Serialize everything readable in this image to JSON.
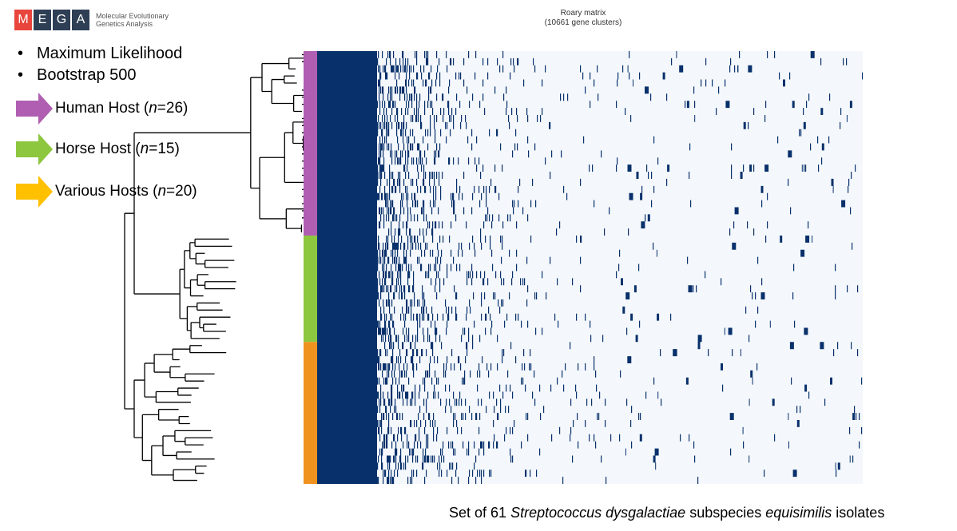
{
  "logo": {
    "letters": [
      "M",
      "E",
      "G",
      "A"
    ],
    "colors": [
      "#e8453c",
      "#2e3f55",
      "#2e3f55",
      "#2e3f55"
    ],
    "subtitle_line1": "Molecular Evolutionary",
    "subtitle_line2": "Genetics Analysis"
  },
  "bullets": [
    {
      "symbol": "•",
      "text": "Maximum Likelihood"
    },
    {
      "symbol": "•",
      "text": "Bootstrap 500"
    }
  ],
  "legend": [
    {
      "label_prefix": "Human Host (",
      "n_label": "n",
      "label_suffix": "=26)",
      "color": "#b05eb2",
      "count": 26
    },
    {
      "label_prefix": "Horse Host (",
      "n_label": "n",
      "label_suffix": "=15)",
      "color": "#8dc63f",
      "count": 15
    },
    {
      "label_prefix": "Various Hosts (",
      "n_label": "n",
      "label_suffix": "=20)",
      "color": "#ffc000",
      "count": 20
    }
  ],
  "chart_data": {
    "type": "heatmap",
    "title": "Roary matrix",
    "subtitle": "(10661 gene clusters)",
    "rows": 61,
    "gene_clusters": 10661,
    "row_groups": [
      {
        "name": "Human Host",
        "rows": 26,
        "color": "#b05eb2"
      },
      {
        "name": "Horse Host",
        "rows": 15,
        "color": "#8dc63f"
      },
      {
        "name": "Various Hosts",
        "rows": 20,
        "color": "#f0921e"
      }
    ],
    "present_color": "#08306b",
    "absent_color": "#f4f8fc",
    "xlabel": "",
    "ylabel": ""
  },
  "caption": {
    "prefix": "Set of 61 ",
    "species": "Streptococcus dysgalactiae",
    "middle": " subspecies ",
    "subspecies": "equisimilis",
    "suffix": " isolates"
  }
}
